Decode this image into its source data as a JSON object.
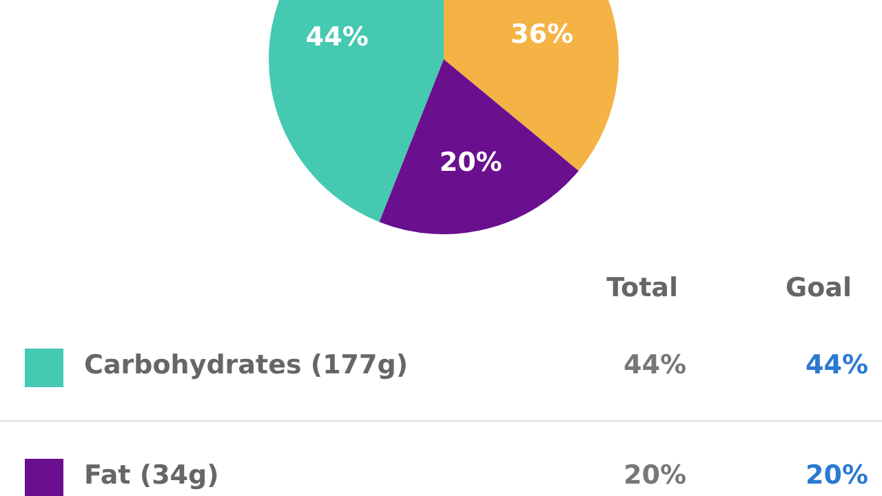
{
  "chart_data": {
    "type": "pie",
    "categories": [
      "Carbohydrates (177g)",
      null,
      "Fat (34g)"
    ],
    "values": [
      44,
      36,
      20
    ],
    "colors": [
      "#45c9b0",
      "#f5b345",
      "#6a0f8e"
    ],
    "value_labels": [
      "44%",
      "36%",
      "20%"
    ],
    "legend": "bottom",
    "annotations": [
      "Total",
      "Goal",
      "44%",
      "20%"
    ]
  }
}
